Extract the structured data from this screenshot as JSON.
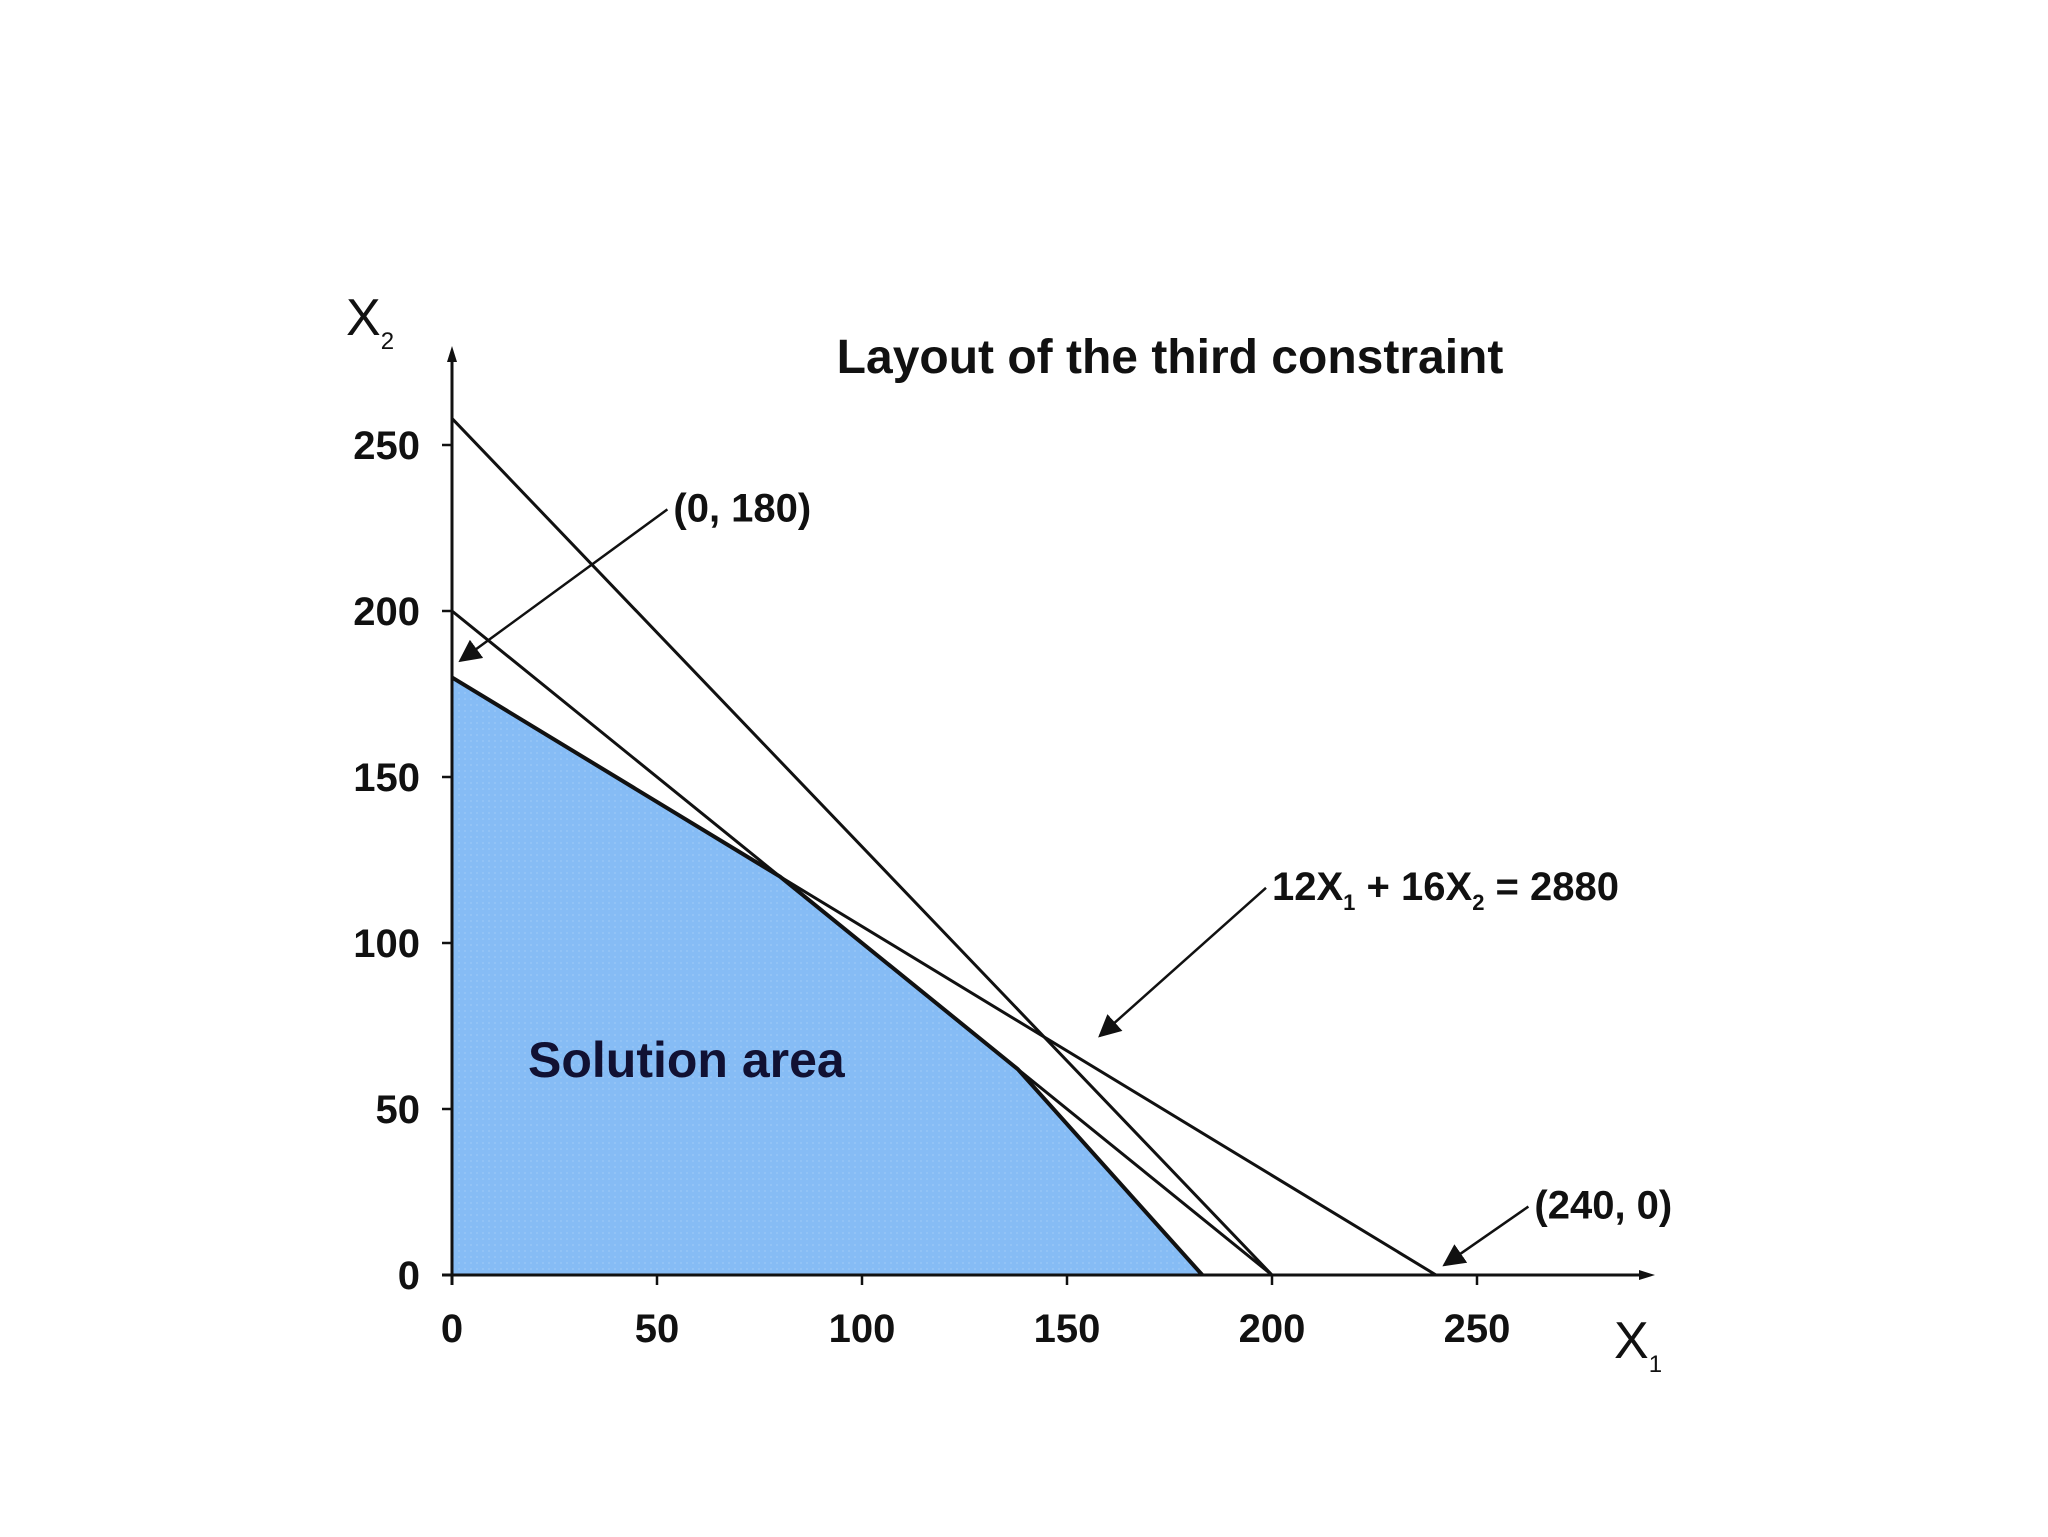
{
  "chart_data": {
    "type": "area",
    "title": "Layout of the third constraint",
    "xlabel": "X",
    "xlabel_sub": "1",
    "ylabel": "X",
    "ylabel_sub": "2",
    "xlim": [
      0,
      290
    ],
    "ylim": [
      0,
      275
    ],
    "x_ticks": [
      0,
      50,
      100,
      150,
      200,
      250
    ],
    "y_ticks": [
      0,
      50,
      100,
      150,
      200,
      250
    ],
    "grid": false,
    "colors": {
      "region_fill": "#86bcf5",
      "lines": "#111111"
    },
    "region_label": "Solution area",
    "feasible_region": [
      {
        "x": 0,
        "y": 0
      },
      {
        "x": 0,
        "y": 180
      },
      {
        "x": 80,
        "y": 120
      },
      {
        "x": 138,
        "y": 62
      },
      {
        "x": 183,
        "y": 0
      }
    ],
    "constraints": [
      {
        "x1_intercept": 200,
        "x2_intercept": 258
      },
      {
        "x1_intercept": 200,
        "x2_intercept": 200
      },
      {
        "x1_intercept": 240,
        "x2_intercept": 180
      }
    ],
    "annotations": [
      {
        "text": "(0, 180)",
        "text_x": 54,
        "text_y": 227,
        "target_x": 2,
        "target_y": 185
      },
      {
        "text": "(240, 0)",
        "text_x": 264,
        "text_y": 17,
        "target_x": 242,
        "target_y": 3
      },
      {
        "text": "12X",
        "sub1": "1",
        "mid": " + 16X",
        "sub2": "2",
        "tail": " = 2880",
        "text_x": 200,
        "text_y": 113,
        "target_x": 158,
        "target_y": 72
      }
    ]
  }
}
